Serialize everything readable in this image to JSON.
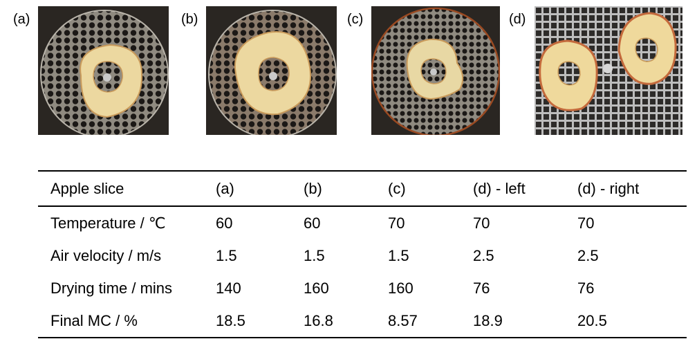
{
  "panels": [
    {
      "label": "(a)",
      "icon": "apple-ring-on-round-mesh"
    },
    {
      "label": "(b)",
      "icon": "apple-ring-on-round-mesh"
    },
    {
      "label": "(c)",
      "icon": "apple-ring-on-round-mesh"
    },
    {
      "label": "(d)",
      "icon": "two-apple-rings-on-square-grid"
    }
  ],
  "colors": {
    "photo_background": "#2a2622",
    "mesh_metal": "#8f8a80",
    "apple_flesh": "#ecd8a0",
    "apple_skin": "#c46a3c",
    "rust": "#9a4a22"
  },
  "table": {
    "headers": [
      "Apple slice",
      "(a)",
      "(b)",
      "(c)",
      "(d) - left",
      "(d) - right"
    ],
    "rows": [
      [
        "Temperature / ℃",
        "60",
        "60",
        "70",
        "70",
        "70"
      ],
      [
        "Air velocity / m/s",
        "1.5",
        "1.5",
        "1.5",
        "2.5",
        "2.5"
      ],
      [
        "Drying time / mins",
        "140",
        "160",
        "160",
        "76",
        "76"
      ],
      [
        "Final MC / %",
        "18.5",
        "16.8",
        "8.57",
        "18.9",
        "20.5"
      ]
    ]
  }
}
